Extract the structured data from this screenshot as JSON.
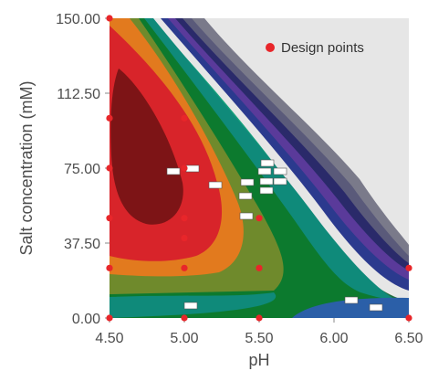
{
  "chart_data": {
    "type": "contour",
    "xlabel": "pH",
    "ylabel": "Salt concentration (mM)",
    "xlim": [
      4.5,
      6.5
    ],
    "ylim": [
      0,
      150
    ],
    "x_ticks": [
      "4.50",
      "5.00",
      "5.50",
      "6.00",
      "6.50"
    ],
    "y_ticks": [
      "0.00",
      "37.50",
      "75.00",
      "112.50",
      "150.00"
    ],
    "x_tick_values": [
      4.5,
      5.0,
      5.5,
      6.0,
      6.5
    ],
    "y_tick_values": [
      0,
      37.5,
      75,
      112.5,
      150
    ],
    "legend": [
      {
        "label": "Design points",
        "color": "#e8262a",
        "marker": "circle",
        "position": "top-right"
      }
    ],
    "design_points": [
      {
        "x": 4.5,
        "y": 150
      },
      {
        "x": 4.5,
        "y": 100
      },
      {
        "x": 4.5,
        "y": 75
      },
      {
        "x": 4.5,
        "y": 50
      },
      {
        "x": 4.5,
        "y": 25
      },
      {
        "x": 4.5,
        "y": 0
      },
      {
        "x": 5.0,
        "y": 100
      },
      {
        "x": 5.0,
        "y": 75
      },
      {
        "x": 5.0,
        "y": 50
      },
      {
        "x": 5.0,
        "y": 40
      },
      {
        "x": 5.0,
        "y": 25
      },
      {
        "x": 5.0,
        "y": 0
      },
      {
        "x": 5.5,
        "y": 50
      },
      {
        "x": 5.5,
        "y": 25
      },
      {
        "x": 5.5,
        "y": 0
      },
      {
        "x": 6.5,
        "y": 25
      },
      {
        "x": 6.5,
        "y": 0
      }
    ],
    "contour_fill_colors": [
      "#2b5fa8",
      "#0f8a7a",
      "#0c7a2e",
      "#6f8a2c",
      "#e27a1e",
      "#d8242a",
      "#7d1416"
    ],
    "high_response_boundary_colors": [
      "#18a37c",
      "#1d6e3e",
      "#2b3a8e",
      "#5a3a9a",
      "#2a2a6a",
      "#5a5a7a",
      "#7a7a8a",
      "#e6e6e6"
    ]
  }
}
